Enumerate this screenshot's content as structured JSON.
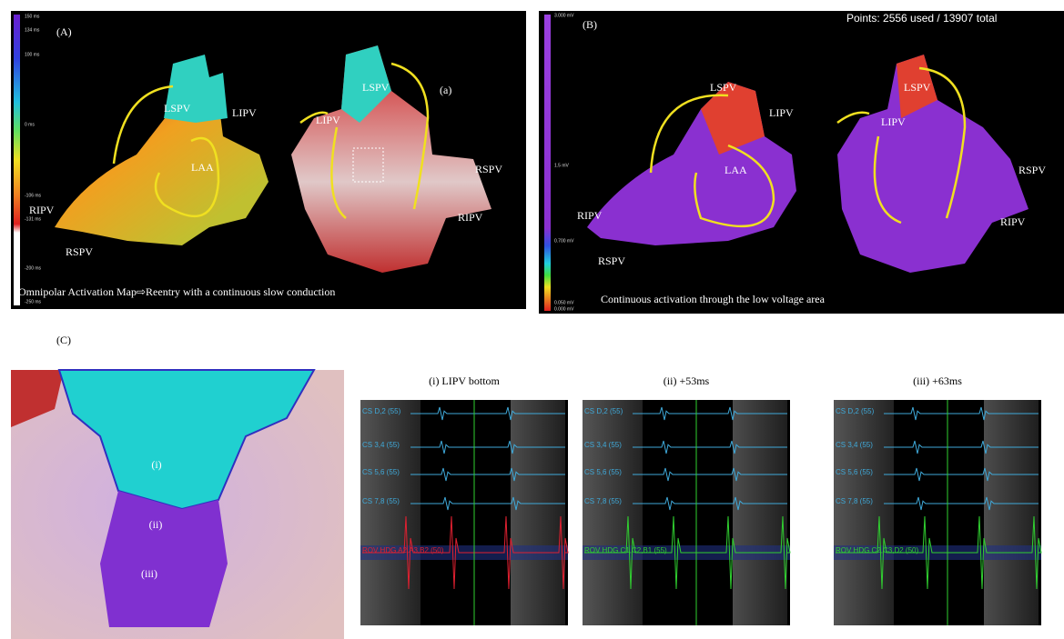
{
  "panel_a": {
    "label": "(A)",
    "inset_label": "(a)",
    "scale": [
      "150 ms",
      "134 ms",
      "100 ms",
      "0 ms",
      "-106 ms",
      "-131 ms",
      "-200 ms",
      "-250 ms"
    ],
    "left_view_labels": [
      "LSPV",
      "LIPV",
      "LAA",
      "RIPV",
      "RSPV"
    ],
    "right_view_labels": [
      "LSPV",
      "LIPV",
      "RSPV",
      "RIPV"
    ],
    "caption": "Omnipolar Activation Map⇨Reentry with a continuous slow conduction"
  },
  "panel_b": {
    "label": "(B)",
    "points": "Points: 2556 used / 13907 total",
    "scale": [
      "3.000 mV",
      "1.5 mV",
      "0.700 mV",
      "0.050 mV",
      "0.000 mV"
    ],
    "left_view_labels": [
      "LSPV",
      "LIPV",
      "LAA",
      "RIPV",
      "RSPV"
    ],
    "right_view_labels": [
      "LSPV",
      "LIPV",
      "RSPV",
      "RIPV"
    ],
    "caption": "Continuous activation through the low voltage area"
  },
  "panel_c": {
    "label": "(C)",
    "zoom_labels": [
      "(i)",
      "(ii)",
      "(iii)"
    ],
    "tracings": [
      {
        "title": "(i) LIPV bottom",
        "channels": [
          "CS D,2 (55)",
          "CS 3,4 (55)",
          "CS 5,6 (55)",
          "CS 7,8 (55)",
          "ROV HDG  A2,A3,B2 (50)"
        ]
      },
      {
        "title": "(ii) +53ms",
        "channels": [
          "CS D,2 (55)",
          "CS 3,4 (55)",
          "CS 5,6 (55)",
          "CS 7,8 (55)",
          "ROV HDG  C1,C2,B1 (55)"
        ]
      },
      {
        "title": "(iii) +63ms",
        "channels": [
          "CS D,2 (55)",
          "CS 3,4 (55)",
          "CS 5,6 (55)",
          "CS 7,8 (55)",
          "ROV HDG  C2,C3,D2 (50)"
        ]
      }
    ]
  }
}
